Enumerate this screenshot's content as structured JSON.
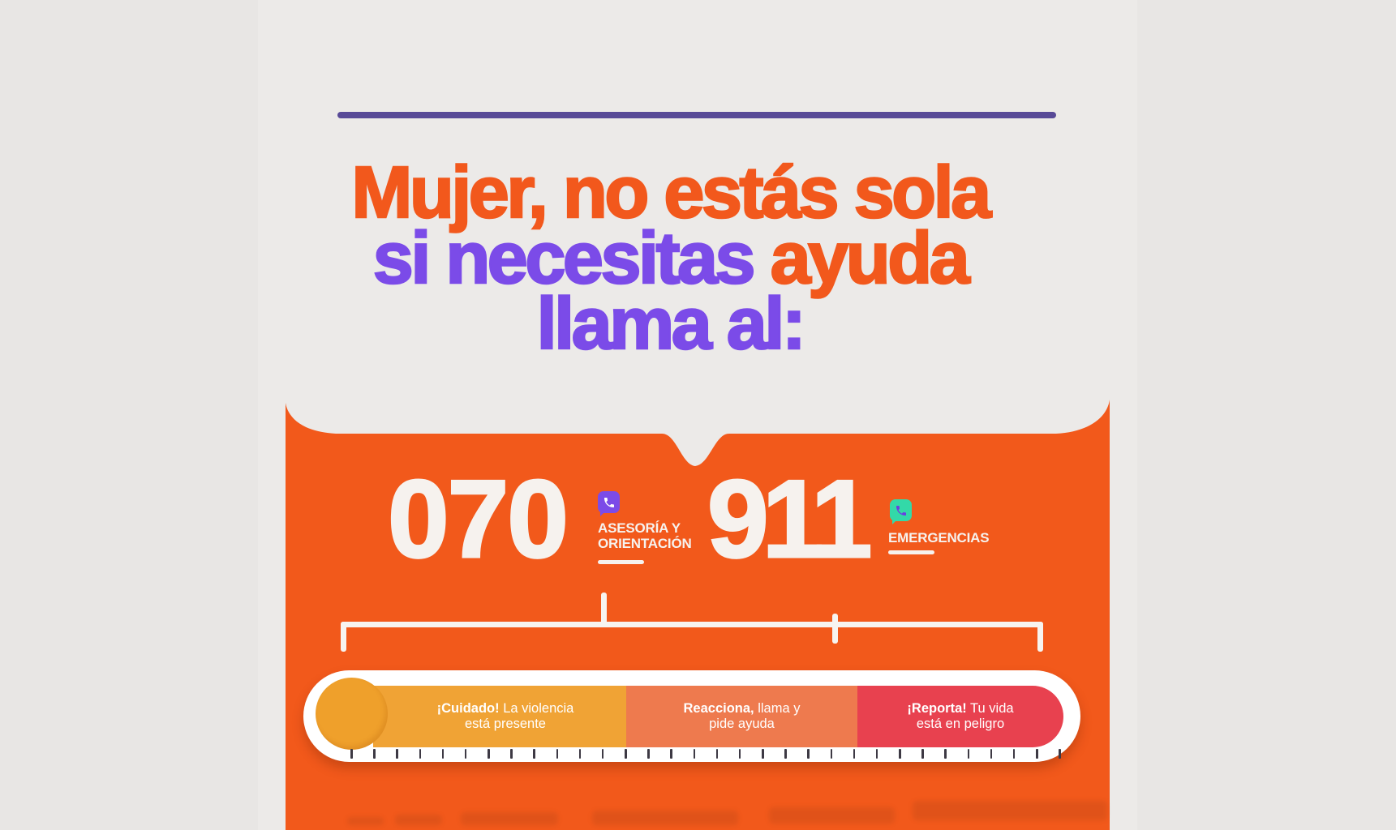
{
  "page": {
    "background": "#e8e6e4",
    "panel_color": "#f2591b",
    "divider_color": "#584a97",
    "bracket_color": "#f7f4f0"
  },
  "heading": {
    "line1": "Mujer, no estás sola",
    "line2_part1": "si necesitas",
    "line2_part2": " ayuda",
    "line3": "llama al:",
    "orange": "#f2581c",
    "purple": "#7b4be8"
  },
  "hotlines": [
    {
      "number": "070",
      "label_line1": "ASESORÍA Y",
      "label_line2": "ORIENTACIÓN",
      "icon": "phone-icon",
      "icon_bg": "#7b4be8",
      "icon_glyph": "#ffffff"
    },
    {
      "number": "911",
      "label_line1": "EMERGENCIAS",
      "icon": "phone-icon",
      "icon_bg": "#33d9a8",
      "icon_glyph": "#6a3fe0"
    }
  ],
  "gauge": {
    "bulb_color": "#efa02b",
    "capsule_color": "#ffffff",
    "tick_count": 32,
    "tick_color": "#3d3944",
    "segments": [
      {
        "bold": "¡Cuidado!",
        "rest": " La violencia",
        "line2": "está presente",
        "color": "#f0a335"
      },
      {
        "bold": "Reacciona,",
        "rest": " llama y",
        "line2": "pide ayuda",
        "color": "#ee7a4e"
      },
      {
        "bold": "¡Reporta!",
        "rest": " Tu vida",
        "line2": "está en peligro",
        "color": "#e8414f"
      }
    ]
  }
}
